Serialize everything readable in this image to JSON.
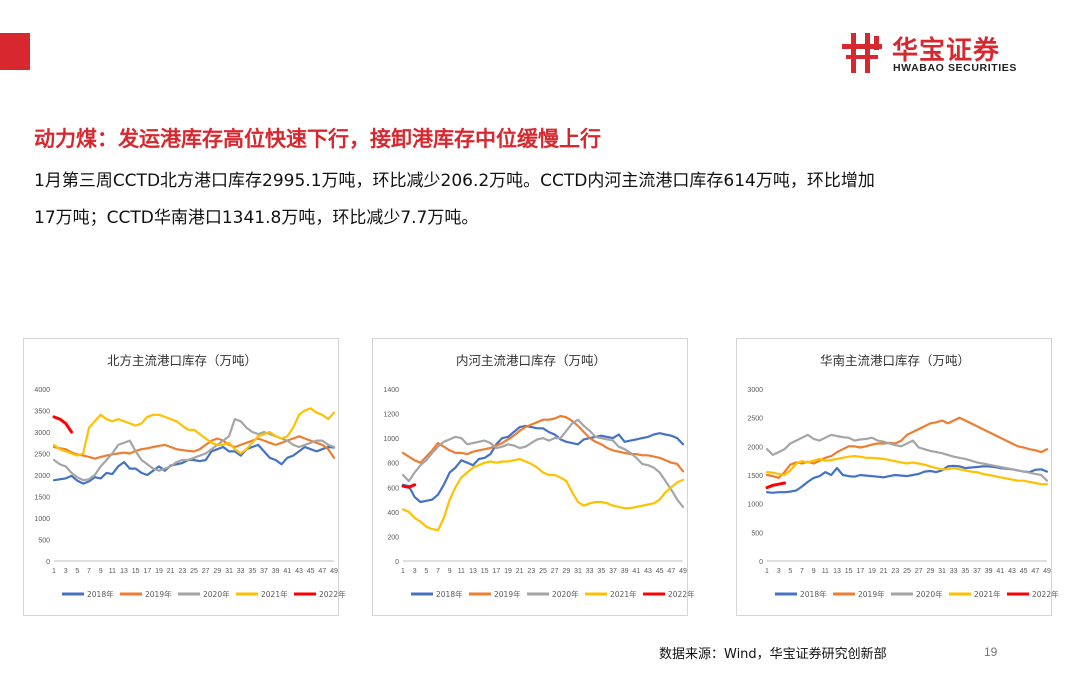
{
  "header": {
    "brand_cn": "华宝证券",
    "brand_en": "HWABAO SECURITIES",
    "logo_icon": "hwabao-logo-icon",
    "accent_color": "#d7282f"
  },
  "slide": {
    "title": "动力煤：发运港库存高位快速下行，接卸港库存中位缓慢上行",
    "body_line1": "1月第三周CCTD北方港口库存2995.1万吨，环比减少206.2万吨。CCTD内河主流港口库存614万吨，环比增加",
    "body_line2": "17万吨；CCTD华南港口1341.8万吨，环比减少7.7万吨。"
  },
  "footer": {
    "source": "数据来源：Wind，华宝证券研究创新部",
    "page_number": "19"
  },
  "chart_data": [
    {
      "type": "line",
      "title": "北方主流港口库存（万吨）",
      "ylim": [
        0,
        4000
      ],
      "yticks": [
        "0",
        "500",
        "1000",
        "1500",
        "2000",
        "2500",
        "3000",
        "3500",
        "4000"
      ],
      "xticks": [
        "1",
        "3",
        "5",
        "7",
        "9",
        "11",
        "13",
        "15",
        "17",
        "19",
        "21",
        "23",
        "25",
        "27",
        "29",
        "31",
        "33",
        "35",
        "37",
        "39",
        "41",
        "43",
        "45",
        "47",
        "49"
      ],
      "legend_position": "bottom",
      "series": [
        {
          "name": "2018年",
          "color": "#4472c4",
          "values": [
            1880,
            1900,
            1920,
            1980,
            1870,
            1800,
            1850,
            1950,
            1920,
            2050,
            2020,
            2200,
            2300,
            2150,
            2150,
            2050,
            2000,
            2100,
            2200,
            2100,
            2220,
            2250,
            2280,
            2350,
            2350,
            2320,
            2350,
            2550,
            2600,
            2650,
            2550,
            2550,
            2450,
            2600,
            2650,
            2700,
            2550,
            2400,
            2350,
            2250,
            2400,
            2450,
            2550,
            2650,
            2600,
            2550,
            2600,
            2650,
            2640
          ]
        },
        {
          "name": "2019年",
          "color": "#ed7d31",
          "values": [
            2650,
            2620,
            2600,
            2520,
            2480,
            2450,
            2420,
            2380,
            2420,
            2450,
            2480,
            2500,
            2520,
            2500,
            2560,
            2600,
            2620,
            2650,
            2680,
            2700,
            2650,
            2600,
            2580,
            2560,
            2550,
            2600,
            2700,
            2800,
            2850,
            2800,
            2700,
            2650,
            2700,
            2750,
            2800,
            2850,
            2800,
            2750,
            2700,
            2750,
            2800,
            2850,
            2900,
            2850,
            2800,
            2750,
            2700,
            2600,
            2400
          ]
        },
        {
          "name": "2020年",
          "color": "#a5a5a5",
          "values": [
            2350,
            2250,
            2200,
            2050,
            1950,
            1880,
            1900,
            2000,
            2200,
            2350,
            2500,
            2700,
            2750,
            2800,
            2550,
            2350,
            2250,
            2150,
            2100,
            2150,
            2200,
            2300,
            2350,
            2350,
            2400,
            2450,
            2500,
            2600,
            2700,
            2800,
            2900,
            3300,
            3250,
            3100,
            3000,
            2950,
            3000,
            2950,
            2900,
            2850,
            2800,
            2700,
            2650,
            2700,
            2750,
            2800,
            2800,
            2700,
            2650
          ]
        },
        {
          "name": "2021年",
          "color": "#ffc000",
          "values": [
            2700,
            2600,
            2550,
            2500,
            2450,
            2500,
            3100,
            3250,
            3400,
            3300,
            3250,
            3300,
            3250,
            3200,
            3150,
            3200,
            3350,
            3400,
            3400,
            3350,
            3300,
            3250,
            3150,
            3050,
            3050,
            2950,
            2850,
            2750,
            2700,
            2700,
            2750,
            2600,
            2500,
            2600,
            2750,
            2900,
            2950,
            3000,
            2900,
            2850,
            2900,
            3100,
            3400,
            3500,
            3550,
            3450,
            3400,
            3300,
            3450
          ]
        },
        {
          "name": "2022年",
          "color": "#ff0000",
          "values": [
            3350,
            3300,
            3200,
            3000,
            null,
            null,
            null,
            null,
            null,
            null,
            null,
            null,
            null,
            null,
            null,
            null,
            null,
            null,
            null,
            null,
            null,
            null,
            null,
            null,
            null,
            null,
            null,
            null,
            null,
            null,
            null,
            null,
            null,
            null,
            null,
            null,
            null,
            null,
            null,
            null,
            null,
            null,
            null,
            null,
            null,
            null,
            null,
            null,
            null
          ]
        }
      ]
    },
    {
      "type": "line",
      "title": "内河主流港口库存（万吨）",
      "ylim": [
        0,
        1400
      ],
      "yticks": [
        "0",
        "200",
        "400",
        "600",
        "800",
        "1000",
        "1200",
        "1400"
      ],
      "xticks": [
        "1",
        "3",
        "5",
        "7",
        "9",
        "11",
        "13",
        "15",
        "17",
        "19",
        "21",
        "23",
        "25",
        "27",
        "29",
        "31",
        "33",
        "35",
        "37",
        "39",
        "41",
        "43",
        "45",
        "47",
        "49"
      ],
      "legend_position": "bottom",
      "series": [
        {
          "name": "2018年",
          "color": "#4472c4",
          "values": [
            620,
            610,
            520,
            480,
            490,
            500,
            540,
            620,
            720,
            760,
            820,
            800,
            780,
            830,
            840,
            870,
            950,
            1000,
            1010,
            1050,
            1090,
            1100,
            1090,
            1080,
            1080,
            1050,
            1030,
            990,
            970,
            960,
            950,
            990,
            1000,
            1010,
            1020,
            1010,
            1000,
            1030,
            970,
            980,
            990,
            1000,
            1010,
            1030,
            1040,
            1030,
            1020,
            1000,
            950
          ]
        },
        {
          "name": "2019年",
          "color": "#ed7d31",
          "values": [
            880,
            850,
            820,
            800,
            850,
            900,
            960,
            930,
            900,
            880,
            880,
            870,
            890,
            900,
            910,
            920,
            940,
            960,
            990,
            1020,
            1060,
            1090,
            1110,
            1130,
            1150,
            1150,
            1160,
            1180,
            1170,
            1140,
            1100,
            1050,
            1000,
            970,
            950,
            920,
            900,
            890,
            880,
            870,
            870,
            860,
            860,
            850,
            840,
            820,
            800,
            790,
            730
          ]
        },
        {
          "name": "2020年",
          "color": "#a5a5a5",
          "values": [
            700,
            650,
            720,
            780,
            820,
            880,
            930,
            970,
            990,
            1010,
            1000,
            950,
            960,
            970,
            980,
            960,
            920,
            930,
            950,
            940,
            920,
            930,
            960,
            990,
            1000,
            980,
            1000,
            1000,
            1060,
            1120,
            1150,
            1100,
            1060,
            1010,
            1000,
            990,
            980,
            930,
            910,
            880,
            840,
            790,
            780,
            760,
            720,
            650,
            580,
            500,
            440
          ]
        },
        {
          "name": "2021年",
          "color": "#ffc000",
          "values": [
            420,
            400,
            350,
            320,
            280,
            260,
            250,
            350,
            500,
            600,
            680,
            720,
            760,
            780,
            800,
            810,
            800,
            810,
            810,
            820,
            830,
            810,
            790,
            760,
            720,
            700,
            700,
            680,
            650,
            560,
            480,
            450,
            470,
            480,
            480,
            470,
            450,
            440,
            430,
            430,
            440,
            450,
            460,
            470,
            500,
            560,
            600,
            640,
            660
          ]
        },
        {
          "name": "2022年",
          "color": "#ff0000",
          "values": [
            610,
            600,
            620,
            null,
            null,
            null,
            null,
            null,
            null,
            null,
            null,
            null,
            null,
            null,
            null,
            null,
            null,
            null,
            null,
            null,
            null,
            null,
            null,
            null,
            null,
            null,
            null,
            null,
            null,
            null,
            null,
            null,
            null,
            null,
            null,
            null,
            null,
            null,
            null,
            null,
            null,
            null,
            null,
            null,
            null,
            null,
            null,
            null,
            null
          ]
        }
      ]
    },
    {
      "type": "line",
      "title": "华南主流港口库存（万吨）",
      "ylim": [
        0,
        3000
      ],
      "yticks": [
        "0",
        "500",
        "1000",
        "1500",
        "2000",
        "2500",
        "3000"
      ],
      "xticks": [
        "1",
        "3",
        "5",
        "7",
        "9",
        "11",
        "13",
        "15",
        "17",
        "19",
        "21",
        "23",
        "25",
        "27",
        "29",
        "31",
        "33",
        "35",
        "37",
        "39",
        "41",
        "43",
        "45",
        "47",
        "49"
      ],
      "legend_position": "bottom",
      "series": [
        {
          "name": "2018年",
          "color": "#4472c4",
          "values": [
            1200,
            1190,
            1200,
            1200,
            1210,
            1230,
            1300,
            1380,
            1450,
            1480,
            1550,
            1500,
            1620,
            1500,
            1480,
            1470,
            1500,
            1490,
            1480,
            1470,
            1460,
            1480,
            1500,
            1490,
            1480,
            1500,
            1520,
            1560,
            1570,
            1550,
            1580,
            1650,
            1660,
            1650,
            1620,
            1630,
            1640,
            1650,
            1650,
            1640,
            1620,
            1610,
            1600,
            1580,
            1560,
            1550,
            1590,
            1600,
            1560
          ]
        },
        {
          "name": "2019年",
          "color": "#ed7d31",
          "values": [
            1500,
            1480,
            1450,
            1550,
            1680,
            1720,
            1700,
            1730,
            1700,
            1750,
            1800,
            1830,
            1900,
            1950,
            2000,
            2000,
            1980,
            2000,
            2030,
            2050,
            2050,
            2060,
            2050,
            2100,
            2200,
            2250,
            2300,
            2350,
            2400,
            2420,
            2450,
            2400,
            2450,
            2500,
            2450,
            2400,
            2350,
            2300,
            2250,
            2200,
            2150,
            2100,
            2050,
            2000,
            1980,
            1950,
            1930,
            1900,
            1950
          ]
        },
        {
          "name": "2020年",
          "color": "#a5a5a5",
          "values": [
            1950,
            1850,
            1900,
            1950,
            2050,
            2100,
            2150,
            2200,
            2130,
            2100,
            2150,
            2200,
            2180,
            2160,
            2150,
            2100,
            2120,
            2130,
            2150,
            2100,
            2080,
            2050,
            2020,
            2000,
            2050,
            2100,
            1980,
            1950,
            1920,
            1900,
            1880,
            1850,
            1820,
            1800,
            1780,
            1750,
            1720,
            1700,
            1680,
            1660,
            1640,
            1620,
            1600,
            1580,
            1560,
            1540,
            1520,
            1500,
            1400
          ]
        },
        {
          "name": "2021年",
          "color": "#ffc000",
          "values": [
            1550,
            1540,
            1520,
            1500,
            1580,
            1700,
            1740,
            1720,
            1750,
            1780,
            1750,
            1760,
            1780,
            1800,
            1820,
            1830,
            1820,
            1800,
            1800,
            1790,
            1780,
            1760,
            1740,
            1720,
            1700,
            1720,
            1700,
            1680,
            1650,
            1620,
            1600,
            1600,
            1620,
            1600,
            1580,
            1560,
            1550,
            1520,
            1500,
            1480,
            1460,
            1440,
            1420,
            1400,
            1400,
            1380,
            1360,
            1340,
            1340
          ]
        },
        {
          "name": "2022年",
          "color": "#ff0000",
          "values": [
            1280,
            1320,
            1340,
            1360,
            null,
            null,
            null,
            null,
            null,
            null,
            null,
            null,
            null,
            null,
            null,
            null,
            null,
            null,
            null,
            null,
            null,
            null,
            null,
            null,
            null,
            null,
            null,
            null,
            null,
            null,
            null,
            null,
            null,
            null,
            null,
            null,
            null,
            null,
            null,
            null,
            null,
            null,
            null,
            null,
            null,
            null,
            null,
            null,
            null
          ]
        }
      ]
    }
  ]
}
